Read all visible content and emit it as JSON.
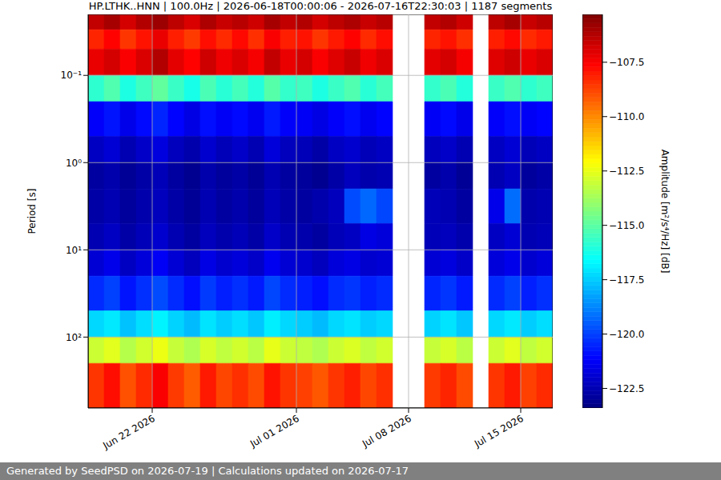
{
  "chart_data": {
    "type": "heatmap",
    "title": "HP.LTHK..HNN | 100.0Hz | 2026-06-18T00:00:06 - 2026-07-16T22:30:03 | 1187 segments",
    "footer": "Generated by SeedPSD on 2026-07-19 | Calculations updated on 2026-07-17",
    "y_label": "Period [s]",
    "log": "y",
    "grid": true,
    "x": [
      "2026-06-18",
      "2026-06-19",
      "2026-06-20",
      "2026-06-21",
      "2026-06-22",
      "2026-06-23",
      "2026-06-24",
      "2026-06-25",
      "2026-06-26",
      "2026-06-27",
      "2026-06-28",
      "2026-06-29",
      "2026-06-30",
      "2026-07-01",
      "2026-07-02",
      "2026-07-03",
      "2026-07-04",
      "2026-07-05",
      "2026-07-06",
      "2026-07-07",
      "2026-07-08",
      "2026-07-09",
      "2026-07-10",
      "2026-07-11",
      "2026-07-12",
      "2026-07-13",
      "2026-07-14",
      "2026-07-15",
      "2026-07-16"
    ],
    "xlim": [
      "2026-06-18",
      "2026-07-17"
    ],
    "xticks": [
      {
        "value": "2026-06-22",
        "label": "Jun 22 2026"
      },
      {
        "value": "2026-07-01",
        "label": "Jul 01 2026"
      },
      {
        "value": "2026-07-08",
        "label": "Jul 08 2026"
      },
      {
        "value": "2026-07-15",
        "label": "Jul 15 2026"
      }
    ],
    "ylim": [
      0.02,
      650
    ],
    "yticks": [
      {
        "value": 0.1,
        "label": "10⁻¹"
      },
      {
        "value": 1,
        "label": "10⁰"
      },
      {
        "value": 10,
        "label": "10¹"
      },
      {
        "value": 100,
        "label": "10²"
      }
    ],
    "period_bins": [
      0.02,
      0.03,
      0.05,
      0.1,
      0.2,
      0.5,
      1,
      2,
      5,
      10,
      20,
      50,
      100,
      200,
      650
    ],
    "z": [
      [
        -106.5,
        -106.0,
        -106.8,
        -106.2,
        -105.8,
        -106.4,
        -106.9,
        -106.1,
        -106.6,
        -106.3,
        -106.7,
        -106.0,
        -106.5,
        -106.2,
        -106.8,
        -106.4,
        -106.1,
        -106.6,
        -106.3,
        null,
        null,
        -106.5,
        -106.2,
        -106.7,
        null,
        -106.4,
        -106.0,
        -106.6,
        -106.3
      ],
      [
        -108.2,
        -107.6,
        -108.5,
        -107.9,
        -107.2,
        -108.1,
        -108.6,
        -107.8,
        -108.3,
        -107.7,
        -108.4,
        -107.5,
        -108.1,
        -107.9,
        -108.5,
        -108.0,
        -107.6,
        -108.3,
        -107.8,
        null,
        null,
        -108.2,
        -107.9,
        -108.4,
        null,
        -108.1,
        -107.7,
        -108.3,
        -108.0
      ],
      [
        -107.2,
        -106.8,
        -107.5,
        -106.9,
        -106.2,
        -107.1,
        -107.6,
        -106.7,
        -107.3,
        -106.9,
        -107.4,
        -106.5,
        -107.2,
        -106.8,
        -107.5,
        -107.0,
        -106.6,
        -107.3,
        -106.9,
        null,
        null,
        -107.1,
        -106.8,
        -107.4,
        null,
        -107.0,
        -106.7,
        -107.2,
        -106.9
      ],
      [
        -115.8,
        -115.2,
        -116.1,
        -115.5,
        -114.9,
        -115.6,
        -116.2,
        -115.3,
        -115.9,
        -115.4,
        -116.0,
        -115.1,
        -115.7,
        -115.5,
        -116.1,
        -115.6,
        -115.2,
        -115.9,
        -115.4,
        null,
        null,
        -115.7,
        -115.3,
        -116.0,
        null,
        -115.6,
        -115.2,
        -115.8,
        -115.5
      ],
      [
        -121.2,
        -120.8,
        -121.5,
        -121.0,
        -120.5,
        -121.1,
        -121.6,
        -120.9,
        -121.3,
        -121.0,
        -121.4,
        -120.7,
        -121.2,
        -121.3,
        -121.6,
        -121.2,
        -120.9,
        -121.4,
        -121.1,
        null,
        null,
        -121.3,
        -121.0,
        -121.5,
        null,
        -121.2,
        -120.9,
        -121.3,
        -121.1
      ],
      [
        -122.2,
        -121.9,
        -122.5,
        -122.1,
        -121.7,
        -122.3,
        -122.6,
        -122.0,
        -122.4,
        -122.1,
        -122.5,
        -121.8,
        -122.3,
        -122.4,
        -122.7,
        -122.2,
        -122.0,
        -122.4,
        -122.2,
        null,
        null,
        -122.3,
        -122.1,
        -122.5,
        null,
        -122.2,
        -121.9,
        -122.4,
        -122.2
      ],
      [
        -122.8,
        -122.6,
        -123.0,
        -122.7,
        -122.4,
        -122.8,
        -123.1,
        -122.6,
        -122.9,
        -122.7,
        -123.0,
        -122.5,
        -122.8,
        -122.9,
        -123.1,
        -122.7,
        -122.3,
        -122.6,
        -122.5,
        null,
        null,
        -122.8,
        -122.6,
        -123.0,
        null,
        -122.5,
        -122.2,
        -122.9,
        -122.7
      ],
      [
        -122.7,
        -122.5,
        -122.9,
        -122.6,
        -122.3,
        -122.7,
        -123.0,
        -122.5,
        -122.8,
        -122.6,
        -122.9,
        -122.4,
        -122.7,
        -122.8,
        -122.6,
        -122.3,
        -119.8,
        -119.3,
        -119.9,
        null,
        null,
        -122.4,
        -122.5,
        -122.8,
        null,
        -121.5,
        -119.2,
        -122.6,
        -122.5
      ],
      [
        -122.5,
        -122.2,
        -122.7,
        -122.4,
        -122.0,
        -122.5,
        -122.8,
        -122.3,
        -122.6,
        -122.4,
        -122.7,
        -122.1,
        -122.5,
        -122.6,
        -122.8,
        -122.4,
        -122.2,
        -121.6,
        -121.8,
        null,
        null,
        -122.4,
        -122.3,
        -122.6,
        null,
        -122.2,
        -121.9,
        -122.5,
        -122.4
      ],
      [
        -121.9,
        -121.5,
        -122.2,
        -121.8,
        -121.3,
        -121.9,
        -122.3,
        -121.6,
        -122.0,
        -121.8,
        -122.1,
        -121.4,
        -121.9,
        -122.0,
        -122.3,
        -121.8,
        -121.6,
        -122.0,
        -121.9,
        null,
        null,
        -121.9,
        -121.7,
        -122.1,
        null,
        -121.8,
        -121.5,
        -122.0,
        -121.8
      ],
      [
        -120.4,
        -120.0,
        -120.8,
        -120.3,
        -119.8,
        -120.4,
        -120.9,
        -120.1,
        -120.6,
        -120.3,
        -120.7,
        -119.9,
        -120.4,
        -120.6,
        -120.9,
        -120.4,
        -120.2,
        -120.6,
        -120.4,
        null,
        null,
        -120.5,
        -120.2,
        -120.7,
        null,
        -120.4,
        -120.0,
        -120.6,
        -120.3
      ],
      [
        -117.3,
        -117.0,
        -117.7,
        -117.2,
        -116.8,
        -117.4,
        -117.8,
        -117.1,
        -117.5,
        -117.2,
        -117.6,
        -116.9,
        -117.3,
        -117.5,
        -117.8,
        -117.3,
        -117.1,
        -117.5,
        -117.3,
        null,
        null,
        -117.4,
        -117.1,
        -117.6,
        null,
        -117.3,
        -117.0,
        -117.5,
        -117.2
      ],
      [
        -113.0,
        -112.6,
        -113.4,
        -112.9,
        -112.4,
        -113.1,
        -113.5,
        -112.8,
        -113.2,
        -112.9,
        -113.3,
        -112.5,
        -113.0,
        -113.2,
        -113.5,
        -113.0,
        -112.7,
        -113.2,
        -112.9,
        null,
        null,
        -113.1,
        -112.8,
        -113.3,
        null,
        -113.0,
        -112.6,
        -113.2,
        -112.9
      ],
      [
        -108.5,
        -107.8,
        -109.0,
        -108.3,
        -107.5,
        -108.6,
        -109.2,
        -108.0,
        -108.8,
        -108.4,
        -108.9,
        -107.9,
        -108.5,
        -108.7,
        -109.1,
        -108.5,
        -108.1,
        -108.8,
        -108.4,
        null,
        null,
        -108.6,
        -108.2,
        -108.9,
        null,
        -108.5,
        -108.0,
        -108.7,
        -108.3
      ]
    ],
    "colorbar": {
      "label": "Amplitude [m²/s⁴/Hz] [dB]",
      "range": [
        -123.4,
        -105.3
      ],
      "ticks": [
        {
          "value": -107.5,
          "label": "−107.5"
        },
        {
          "value": -110,
          "label": "−110.0"
        },
        {
          "value": -112.5,
          "label": "−112.5"
        },
        {
          "value": -115,
          "label": "−115.0"
        },
        {
          "value": -117.5,
          "label": "−117.5"
        },
        {
          "value": -120,
          "label": "−120.0"
        },
        {
          "value": -122.5,
          "label": "−122.5"
        }
      ]
    }
  }
}
